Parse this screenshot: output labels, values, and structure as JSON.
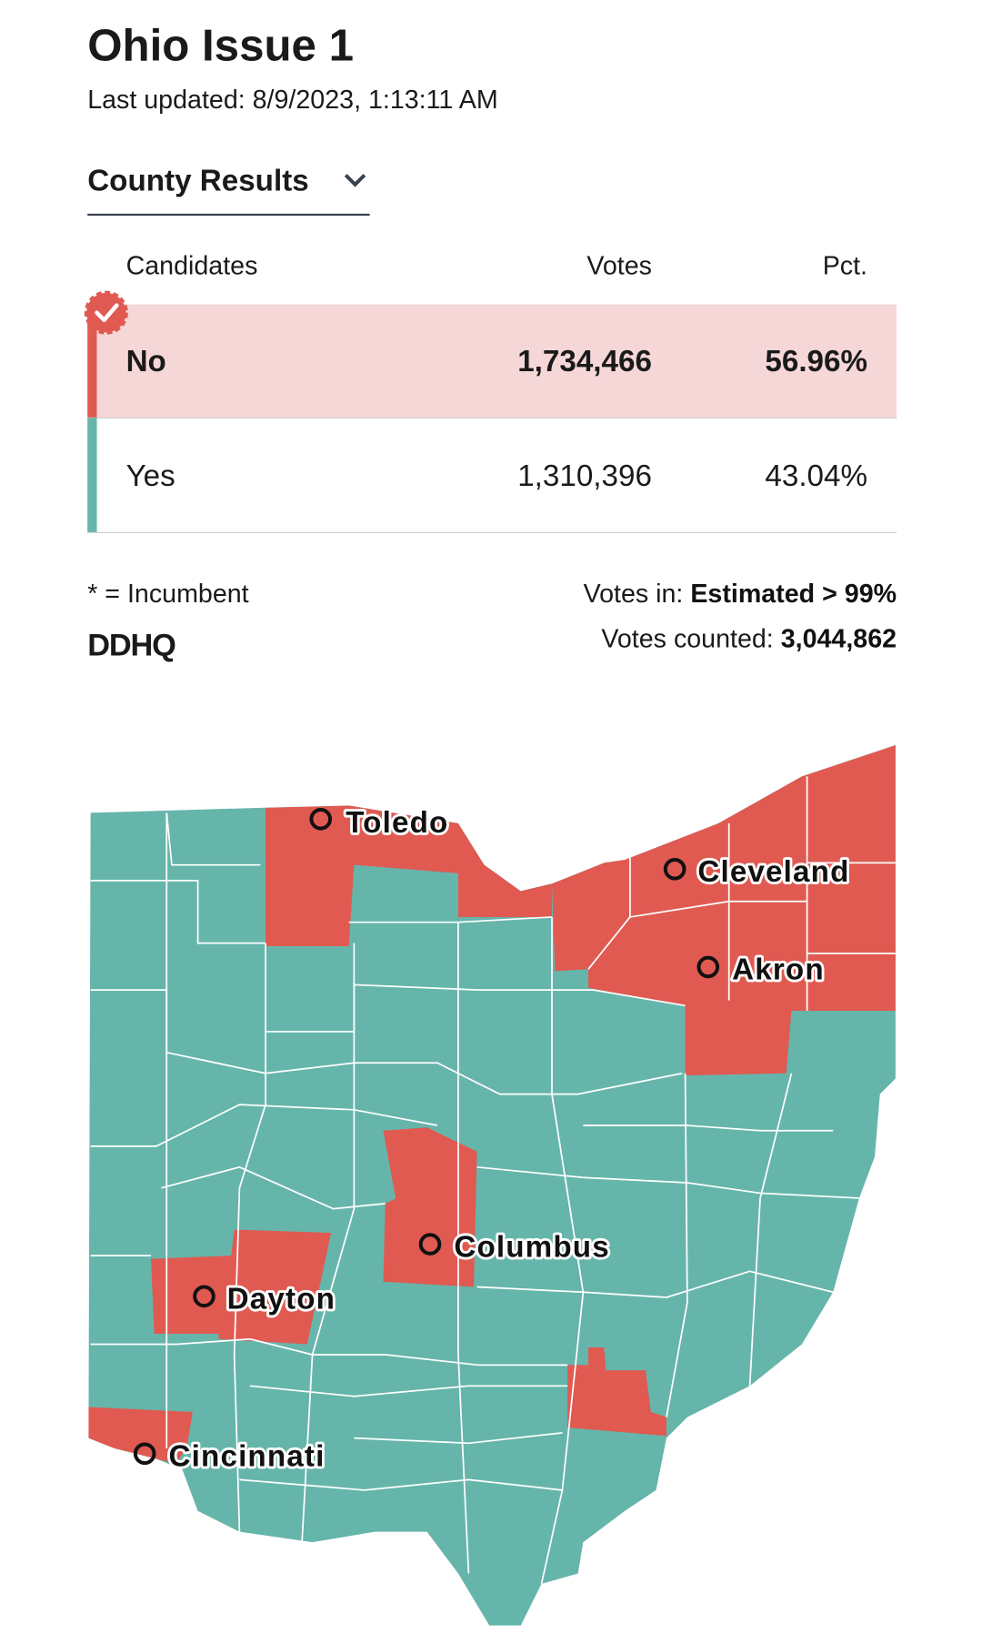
{
  "header": {
    "title": "Ohio Issue 1",
    "last_updated": "Last updated: 8/9/2023, 1:13:11 AM"
  },
  "dropdown": {
    "label": "County Results"
  },
  "table": {
    "columns": [
      "Candidates",
      "Votes",
      "Pct."
    ],
    "rows": [
      [
        "No",
        "1,734,466",
        "56.96%"
      ],
      [
        "Yes",
        "1,310,396",
        "43.04%"
      ]
    ]
  },
  "footer": {
    "incumbent_note": "* = Incumbent",
    "logo": "DDHQ",
    "votes_in_label": "Votes in:",
    "votes_in_value": "Estimated > 99%",
    "votes_counted_label": "Votes counted:",
    "votes_counted_value": "3,044,862"
  },
  "map": {
    "cities": [
      "Toledo",
      "Cleveland",
      "Akron",
      "Columbus",
      "Dayton",
      "Cincinnati"
    ]
  }
}
